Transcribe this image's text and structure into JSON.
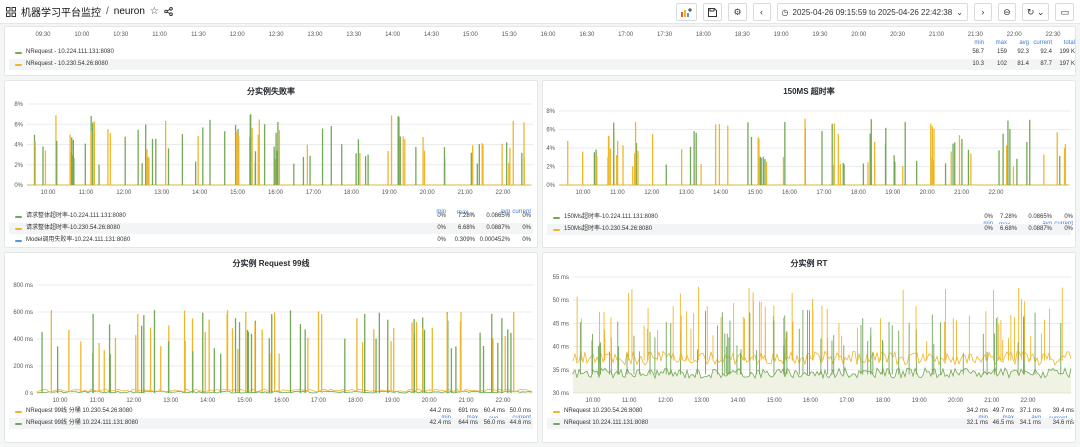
{
  "header": {
    "grid_icon": "apps-grid-icon",
    "folder": "机器学习平台监控",
    "separator": "/",
    "dashboard": "neuron",
    "time_range": "2025-04-26 09:15:59 to 2025-04-26 22:42:38"
  },
  "colors": {
    "green": "#73a857",
    "yellow": "#f0b62b",
    "blue": "#5794f2"
  },
  "top_panel": {
    "x_ticks": [
      "09:30",
      "10:00",
      "10:30",
      "11:00",
      "11:30",
      "12:00",
      "12:30",
      "13:00",
      "13:30",
      "14:00",
      "14:30",
      "15:00",
      "15:30",
      "16:00",
      "16:30",
      "17:00",
      "17:30",
      "18:00",
      "18:30",
      "19:00",
      "19:30",
      "20:00",
      "20:30",
      "21:00",
      "21:30",
      "22:00",
      "22:30"
    ],
    "legend_headers": [
      "min",
      "max",
      "avg",
      "current",
      "total"
    ],
    "rows": [
      {
        "name": "NRequest - 10.224.111.131:8080",
        "color": "#73a857",
        "values": [
          "58.7",
          "159",
          "92.3",
          "92.4",
          "199 K"
        ]
      },
      {
        "name": "NRequest - 10.230.54.26:8080",
        "color": "#f0b62b",
        "values": [
          "10.3",
          "102",
          "81.4",
          "87.7",
          "197 K"
        ]
      }
    ]
  },
  "panel_fail": {
    "title": "分实例失败率",
    "y_ticks": [
      "8%",
      "6%",
      "4%",
      "2%",
      "0%"
    ],
    "x_ticks": [
      "10:00",
      "11:00",
      "12:00",
      "13:00",
      "14:00",
      "15:00",
      "16:00",
      "17:00",
      "18:00",
      "19:00",
      "20:00",
      "21:00",
      "22:00"
    ],
    "legend_headers": [
      "min",
      "max ⌄",
      "avg",
      "current"
    ],
    "rows": [
      {
        "name": "请求整体超时率-10.224.111.131:8080",
        "color": "#73a857",
        "values": [
          "0%",
          "7.28%",
          "0.0865%",
          "0%"
        ]
      },
      {
        "name": "请求整体超时率-10.230.54.26:8080",
        "color": "#f0b62b",
        "values": [
          "0%",
          "6.68%",
          "0.0887%",
          "0%"
        ]
      },
      {
        "name": "Model调用失败率-10.224.111.131:8080",
        "color": "#5794f2",
        "values": [
          "0%",
          "0.309%",
          "0.000452%",
          "0%"
        ]
      }
    ]
  },
  "panel_timeout": {
    "title": "150MS 超时率",
    "y_ticks": [
      "8%",
      "6%",
      "4%",
      "2%",
      "0%"
    ],
    "x_ticks": [
      "10:00",
      "11:00",
      "12:00",
      "13:00",
      "14:00",
      "15:00",
      "16:00",
      "17:00",
      "18:00",
      "19:00",
      "20:00",
      "21:00",
      "22:00"
    ],
    "legend_headers": [
      "min",
      "max ⌄",
      "avg",
      "current"
    ],
    "rows": [
      {
        "name": "150Ms超时率-10.224.111.131:8080",
        "color": "#73a857",
        "values": [
          "0%",
          "7.28%",
          "0.0865%",
          "0%"
        ]
      },
      {
        "name": "150Ms超时率-10.230.54.26:8080",
        "color": "#f0b62b",
        "values": [
          "0%",
          "6.68%",
          "0.0887%",
          "0%"
        ]
      }
    ]
  },
  "panel_p99": {
    "title": "分实例 Request 99线",
    "y_ticks": [
      "800 ms",
      "600 ms",
      "400 ms",
      "200 ms",
      "0 s"
    ],
    "x_ticks": [
      "10:00",
      "11:00",
      "12:00",
      "13:00",
      "14:00",
      "15:00",
      "16:00",
      "17:00",
      "18:00",
      "19:00",
      "20:00",
      "21:00",
      "22:00"
    ],
    "legend_headers": [
      "min",
      "max",
      "avg ⌄",
      "current"
    ],
    "rows": [
      {
        "name": "NRequest 99线 分桶 10.230.54.26:8080",
        "color": "#f0b62b",
        "values": [
          "44.2 ms",
          "691 ms",
          "60.4 ms",
          "50.0 ms"
        ]
      },
      {
        "name": "NRequest 99线 分桶 10.224.111.131:8080",
        "color": "#73a857",
        "values": [
          "42.4 ms",
          "644 ms",
          "56.0 ms",
          "44.6 ms"
        ]
      }
    ]
  },
  "panel_rt": {
    "title": "分实例 RT",
    "y_ticks": [
      "55 ms",
      "50 ms",
      "45 ms",
      "40 ms",
      "35 ms",
      "30 ms"
    ],
    "x_ticks": [
      "10:00",
      "11:00",
      "12:00",
      "13:00",
      "14:00",
      "15:00",
      "16:00",
      "17:00",
      "18:00",
      "19:00",
      "20:00",
      "21:00",
      "22:00"
    ],
    "legend_headers": [
      "min",
      "max",
      "avg",
      "current ⌄"
    ],
    "rows": [
      {
        "name": "NRequest 10.230.54.26:8080",
        "color": "#f0b62b",
        "values": [
          "34.2 ms",
          "49.7 ms",
          "37.1 ms",
          "39.4 ms"
        ]
      },
      {
        "name": "NRequest 10.224.111.131:8080",
        "color": "#73a857",
        "values": [
          "32.1 ms",
          "46.5 ms",
          "34.1 ms",
          "34.6 ms"
        ]
      }
    ]
  }
}
